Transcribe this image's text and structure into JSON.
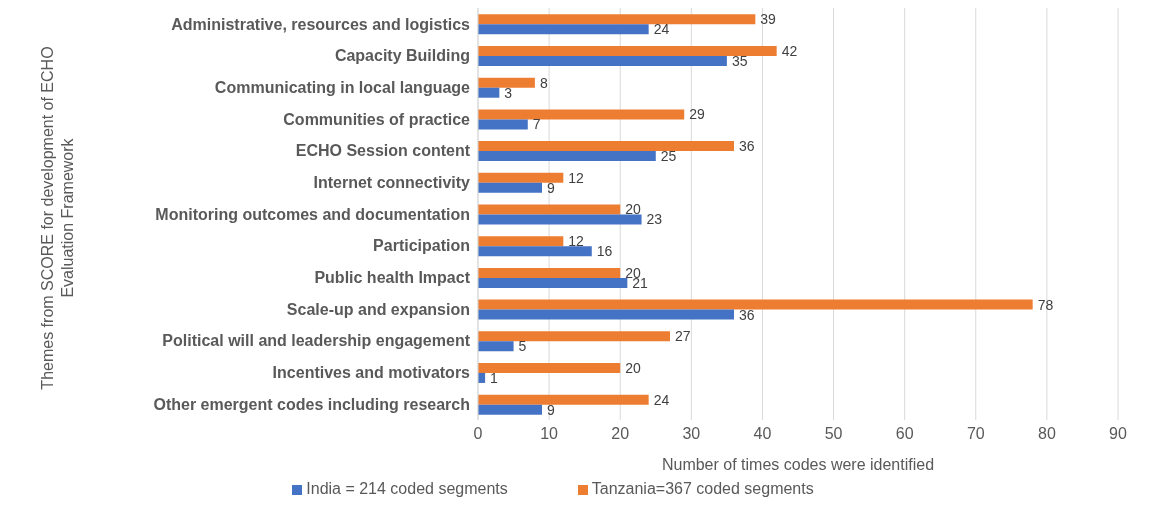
{
  "chart_data": {
    "type": "bar",
    "orientation": "horizontal",
    "xlabel": "Number of times codes were identified",
    "ylabel": "Themes from SCORE for development of ECHO Evaluation Framework",
    "categories": [
      "Administrative, resources and logistics",
      "Capacity Building",
      "Communicating in local language",
      "Communities of practice",
      "ECHO Session content",
      "Internet connectivity",
      "Monitoring outcomes and documentation",
      "Participation",
      "Public health Impact",
      "Scale-up and expansion",
      "Political will and leadership engagement",
      "Incentives and motivators",
      "Other emergent codes including research"
    ],
    "series": [
      {
        "name": "Tanzania=367 coded segments",
        "color": "#ed7d31",
        "values": [
          39,
          42,
          8,
          29,
          36,
          12,
          20,
          12,
          20,
          78,
          27,
          20,
          24
        ]
      },
      {
        "name": "India = 214 coded segments",
        "color": "#4472c4",
        "values": [
          24,
          35,
          3,
          7,
          25,
          9,
          23,
          16,
          21,
          36,
          5,
          1,
          9
        ]
      }
    ],
    "xlim": [
      0,
      90
    ],
    "xticks": [
      0,
      10,
      20,
      30,
      40,
      50,
      60,
      70,
      80,
      90
    ],
    "grid": "x",
    "legend": "bottom",
    "data_labels": true
  }
}
